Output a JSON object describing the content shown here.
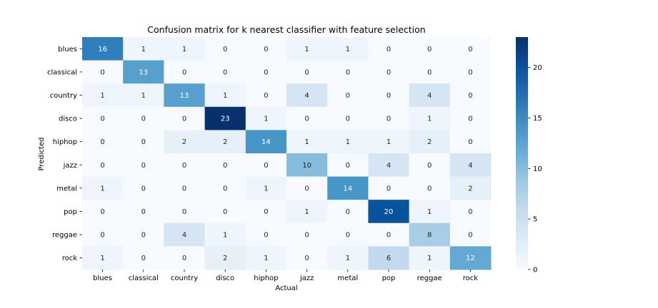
{
  "chart_data": {
    "type": "heatmap",
    "title": "Confusion matrix for k nearest classifier with feature selection",
    "xlabel": "Actual",
    "ylabel": "Predicted",
    "x_categories": [
      "blues",
      "classical",
      "country",
      "disco",
      "hiphop",
      "jazz",
      "metal",
      "pop",
      "reggae",
      "rock"
    ],
    "y_categories": [
      "blues",
      "classical",
      "country",
      "disco",
      "hiphop",
      "jazz",
      "metal",
      "pop",
      "reggae",
      "rock"
    ],
    "values": [
      [
        16,
        1,
        1,
        0,
        0,
        1,
        1,
        0,
        0,
        0
      ],
      [
        0,
        13,
        0,
        0,
        0,
        0,
        0,
        0,
        0,
        0
      ],
      [
        1,
        1,
        13,
        1,
        0,
        4,
        0,
        0,
        4,
        0
      ],
      [
        0,
        0,
        0,
        23,
        1,
        0,
        0,
        0,
        1,
        0
      ],
      [
        0,
        0,
        2,
        2,
        14,
        1,
        1,
        1,
        2,
        0
      ],
      [
        0,
        0,
        0,
        0,
        0,
        10,
        0,
        4,
        0,
        4
      ],
      [
        1,
        0,
        0,
        0,
        1,
        0,
        14,
        0,
        0,
        2
      ],
      [
        0,
        0,
        0,
        0,
        0,
        1,
        0,
        20,
        1,
        0
      ],
      [
        0,
        0,
        4,
        1,
        0,
        0,
        0,
        0,
        8,
        0
      ],
      [
        1,
        0,
        0,
        2,
        1,
        0,
        1,
        6,
        1,
        12
      ]
    ],
    "colorbar": {
      "min": 0,
      "max": 23,
      "ticks": [
        0,
        5,
        10,
        15,
        20
      ]
    },
    "colormap": [
      "#f7fbff",
      "#deebf7",
      "#c6dbef",
      "#9ecae1",
      "#6baed6",
      "#4292c6",
      "#2171b5",
      "#08519c",
      "#08306b"
    ]
  }
}
